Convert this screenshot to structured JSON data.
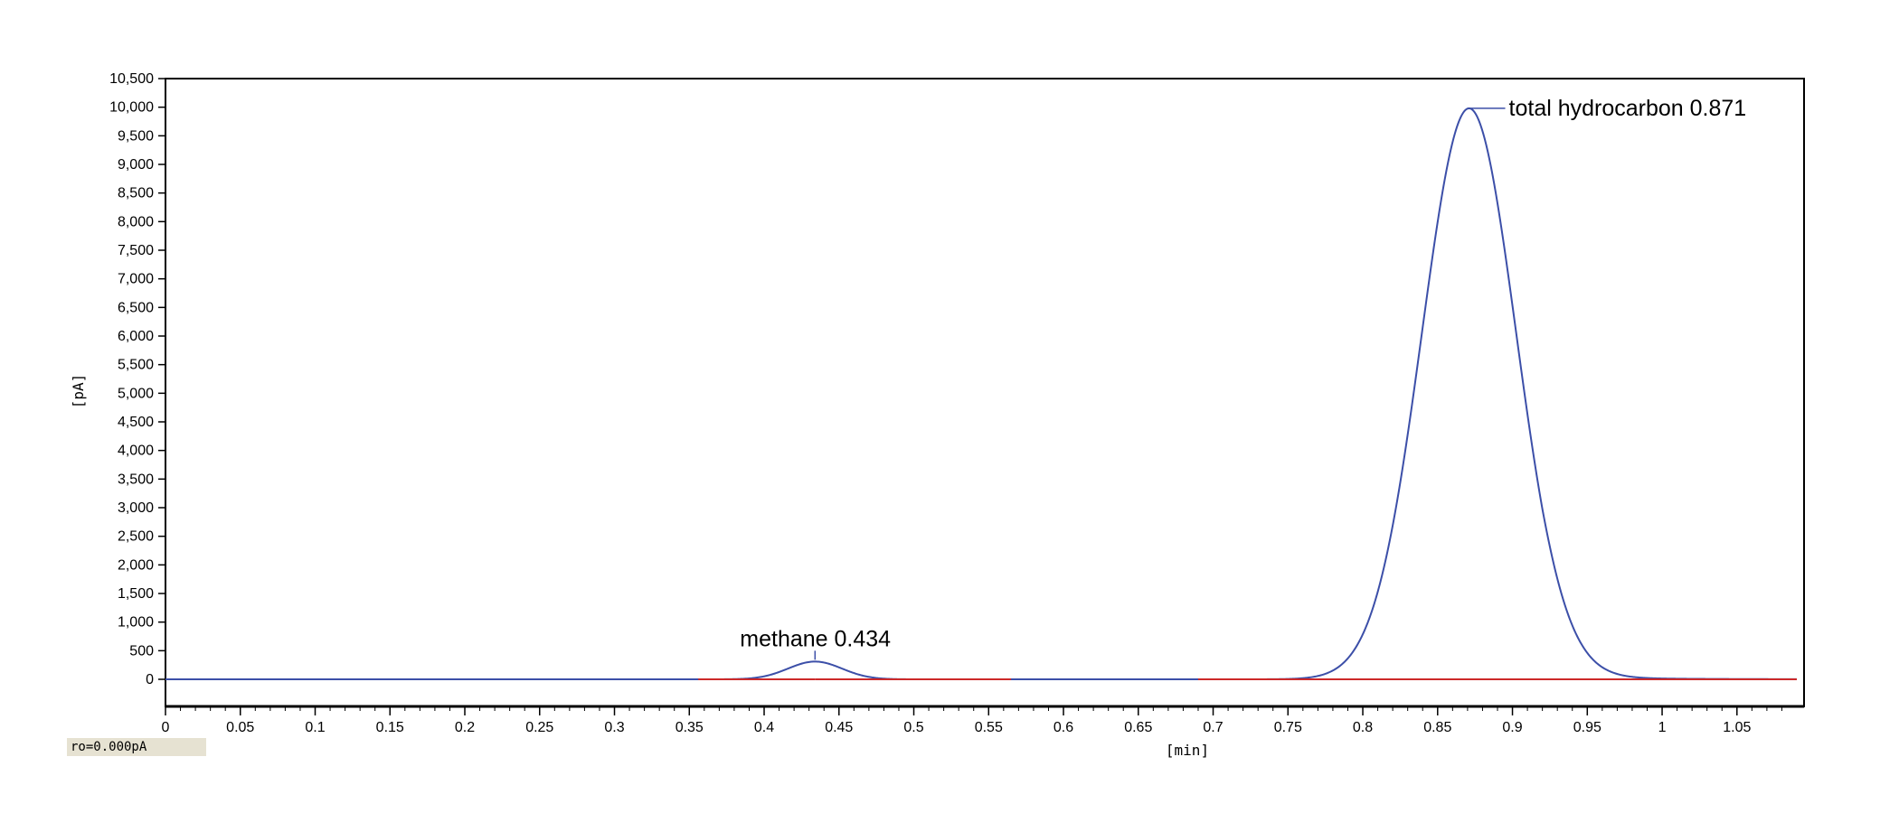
{
  "chart_data": {
    "type": "line",
    "xlabel": "[min]",
    "ylabel": "[pA]",
    "xlim": [
      0,
      1.09
    ],
    "ylim": [
      -500,
      10500
    ],
    "x_ticks": [
      "0",
      "0.05",
      "0.1",
      "0.15",
      "0.2",
      "0.25",
      "0.3",
      "0.35",
      "0.4",
      "0.45",
      "0.5",
      "0.55",
      "0.6",
      "0.65",
      "0.7",
      "0.75",
      "0.8",
      "0.85",
      "0.9",
      "0.95",
      "1",
      "1.05"
    ],
    "y_ticks": [
      "0",
      "500",
      "1,000",
      "1,500",
      "2,000",
      "2,500",
      "3,000",
      "3,500",
      "4,000",
      "4,500",
      "5,000",
      "5,500",
      "6,000",
      "6,500",
      "7,000",
      "7,500",
      "8,000",
      "8,500",
      "9,000",
      "9,500",
      "10,000",
      "10,500"
    ],
    "grid": false,
    "series": [
      {
        "color": "#3c4fa8",
        "peaks": [
          {
            "center": 0.434,
            "height": 310,
            "width": 0.018
          },
          {
            "center": 0.871,
            "height": 9980,
            "width": 0.0315
          }
        ],
        "tail": {
          "start": 0.92,
          "amplitude": 60,
          "decay": 0.05
        }
      }
    ],
    "baselines": [
      {
        "color": "#cc2a2a",
        "value": 0,
        "segments": [
          [
            0.356,
            0.434
          ],
          [
            0.434,
            0.5
          ],
          [
            0.5,
            0.565
          ],
          [
            0.69,
            1.09
          ]
        ]
      }
    ],
    "annotations": [
      {
        "text": "methane 0.434",
        "x": 0.434,
        "y": 310
      },
      {
        "text": "total hydrocarbon 0.871",
        "x": 0.871,
        "y": 9980
      }
    ]
  },
  "status": {
    "text": "ro=0.000pA"
  }
}
